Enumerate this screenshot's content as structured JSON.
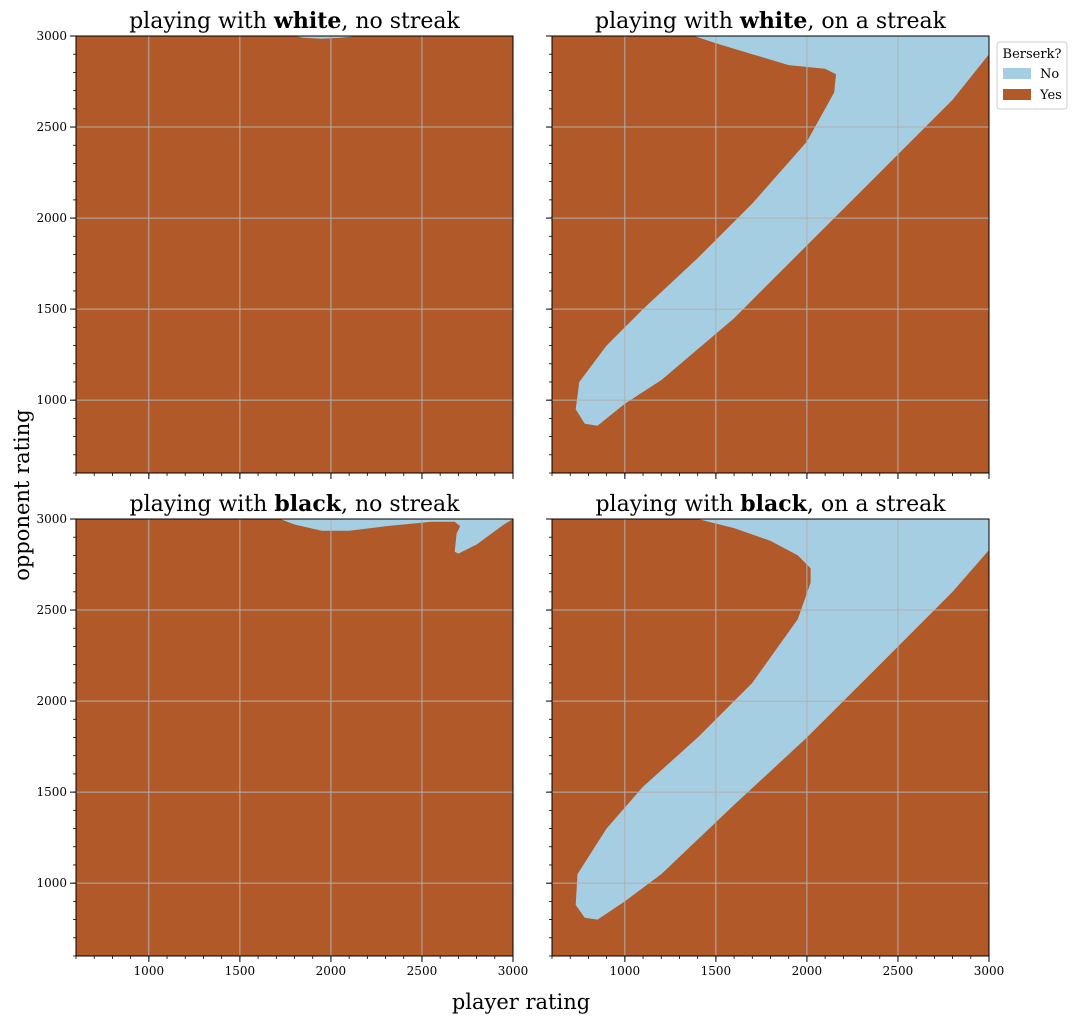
{
  "figure": {
    "xlabel": "player rating",
    "ylabel": "opponent rating"
  },
  "colors": {
    "no": "#a6cee3",
    "yes": "#b15928",
    "grid": "#b0b0b0",
    "axis": "#000000"
  },
  "legend": {
    "title": "Berserk?",
    "entries": [
      {
        "label": "No",
        "color": "#a6cee3"
      },
      {
        "label": "Yes",
        "color": "#b15928"
      }
    ],
    "placement": "outside-top-right"
  },
  "chart_data": [
    {
      "type": "heatmap",
      "title_parts": [
        "playing with ",
        "white",
        ", no streak"
      ],
      "xlim": [
        600,
        3000
      ],
      "ylim": [
        600,
        3000
      ],
      "xticks": [
        1000,
        1500,
        2000,
        2500,
        3000
      ],
      "yticks": [
        1000,
        1500,
        2000,
        2500,
        3000
      ],
      "grid": true,
      "background_class": "Yes",
      "regions": [
        {
          "class": "No",
          "boundary": [
            [
              1800,
              3000
            ],
            [
              1850,
              2990
            ],
            [
              1950,
              2985
            ],
            [
              2050,
              2990
            ],
            [
              2150,
              3000
            ]
          ]
        }
      ]
    },
    {
      "type": "heatmap",
      "title_parts": [
        "playing with ",
        "white",
        ", on a streak"
      ],
      "xlim": [
        600,
        3000
      ],
      "ylim": [
        600,
        3000
      ],
      "xticks": [
        1000,
        1500,
        2000,
        2500,
        3000
      ],
      "yticks": [
        1000,
        1500,
        2000,
        2500,
        3000
      ],
      "grid": true,
      "background_class": "Yes",
      "regions": [
        {
          "class": "No",
          "boundary": [
            [
              1380,
              3000
            ],
            [
              3000,
              3000
            ],
            [
              3000,
              2900
            ],
            [
              2800,
              2650
            ],
            [
              2400,
              2250
            ],
            [
              2000,
              1850
            ],
            [
              1600,
              1450
            ],
            [
              1200,
              1110
            ],
            [
              1000,
              980
            ],
            [
              850,
              860
            ],
            [
              780,
              870
            ],
            [
              730,
              950
            ],
            [
              750,
              1100
            ],
            [
              900,
              1300
            ],
            [
              1100,
              1500
            ],
            [
              1400,
              1780
            ],
            [
              1700,
              2080
            ],
            [
              2000,
              2420
            ],
            [
              2150,
              2690
            ],
            [
              2160,
              2790
            ],
            [
              2100,
              2820
            ],
            [
              1900,
              2840
            ],
            [
              1700,
              2900
            ],
            [
              1500,
              2960
            ]
          ]
        }
      ]
    },
    {
      "type": "heatmap",
      "title_parts": [
        "playing with ",
        "black",
        ", no streak"
      ],
      "xlim": [
        600,
        3000
      ],
      "ylim": [
        600,
        3000
      ],
      "xticks": [
        1000,
        1500,
        2000,
        2500,
        3000
      ],
      "yticks": [
        1000,
        1500,
        2000,
        2500,
        3000
      ],
      "grid": true,
      "background_class": "Yes",
      "regions": [
        {
          "class": "No",
          "boundary": [
            [
              1720,
              3000
            ],
            [
              1800,
              2970
            ],
            [
              1950,
              2935
            ],
            [
              2100,
              2935
            ],
            [
              2300,
              2960
            ],
            [
              2550,
              2985
            ],
            [
              2680,
              2985
            ],
            [
              2710,
              2960
            ],
            [
              2690,
              2920
            ],
            [
              2680,
              2820
            ],
            [
              2700,
              2810
            ],
            [
              2800,
              2860
            ],
            [
              2950,
              2970
            ],
            [
              3000,
              3000
            ]
          ]
        }
      ]
    },
    {
      "type": "heatmap",
      "title_parts": [
        "playing with ",
        "black",
        ", on a streak"
      ],
      "xlim": [
        600,
        3000
      ],
      "ylim": [
        600,
        3000
      ],
      "xticks": [
        1000,
        1500,
        2000,
        2500,
        3000
      ],
      "yticks": [
        1000,
        1500,
        2000,
        2500,
        3000
      ],
      "grid": true,
      "background_class": "Yes",
      "regions": [
        {
          "class": "No",
          "boundary": [
            [
              1400,
              3000
            ],
            [
              3000,
              3000
            ],
            [
              3000,
              2830
            ],
            [
              2800,
              2600
            ],
            [
              2400,
              2200
            ],
            [
              2000,
              1800
            ],
            [
              1600,
              1430
            ],
            [
              1200,
              1050
            ],
            [
              1000,
              900
            ],
            [
              850,
              800
            ],
            [
              780,
              810
            ],
            [
              730,
              880
            ],
            [
              740,
              1050
            ],
            [
              900,
              1300
            ],
            [
              1100,
              1530
            ],
            [
              1400,
              1800
            ],
            [
              1700,
              2100
            ],
            [
              1950,
              2450
            ],
            [
              2020,
              2650
            ],
            [
              2020,
              2730
            ],
            [
              1950,
              2800
            ],
            [
              1800,
              2880
            ],
            [
              1600,
              2950
            ]
          ]
        }
      ]
    }
  ]
}
